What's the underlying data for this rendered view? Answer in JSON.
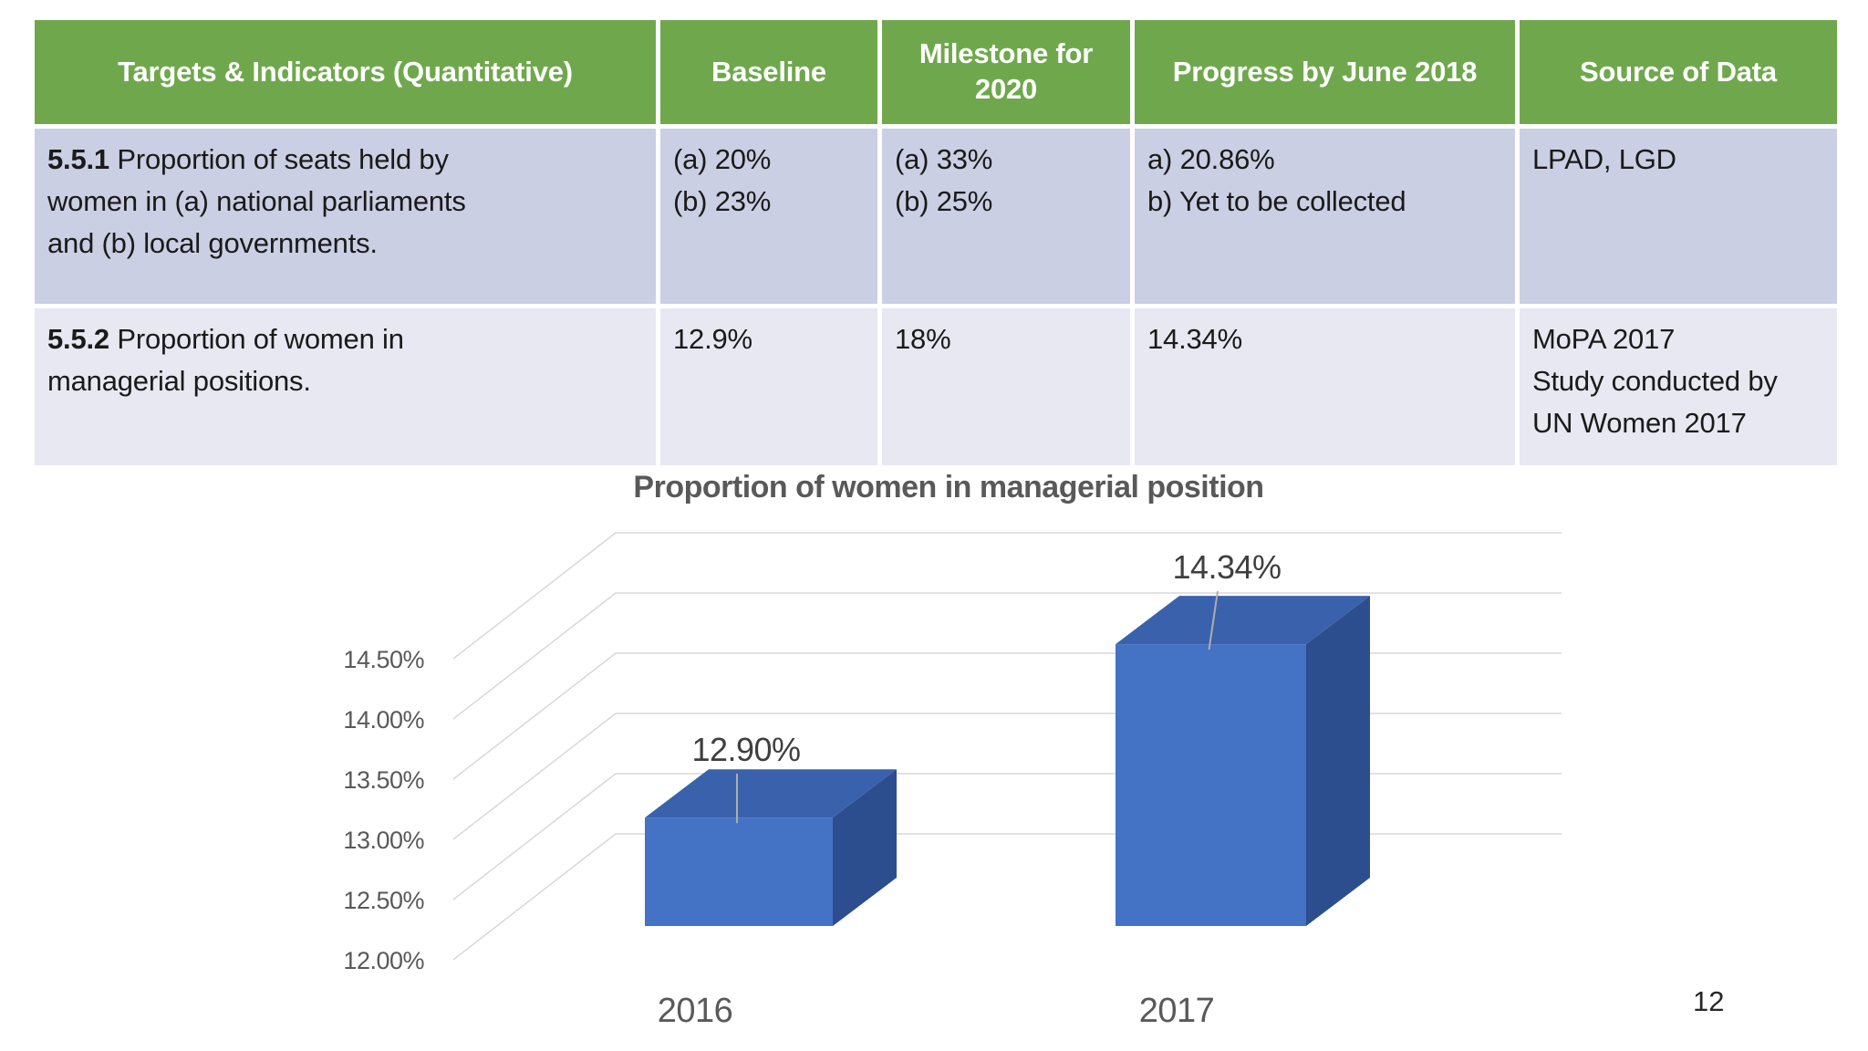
{
  "table": {
    "headers": [
      "Targets & Indicators (Quantitative)",
      "Baseline",
      "Milestone for 2020",
      "Progress by June 2018",
      "Source of Data"
    ],
    "rows": [
      {
        "id": "5.5.1",
        "indicator": " Proportion of seats held by\nwomen in (a) national parliaments\nand (b) local governments.",
        "baseline": "(a) 20%\n(b) 23%",
        "milestone": "(a) 33%\n(b) 25%",
        "progress": "a) 20.86%\nb) Yet to be collected",
        "source": "LPAD, LGD"
      },
      {
        "id": "5.5.2",
        "indicator": " Proportion of women in\nmanagerial positions.",
        "baseline": "12.9%",
        "milestone": "18%",
        "progress": "14.34%",
        "source": "MoPA 2017\nStudy conducted by\nUN Women 2017"
      }
    ]
  },
  "chart_data": {
    "type": "bar",
    "projection": "3d",
    "title": "Proportion of women in managerial position",
    "categories": [
      "2016",
      "2017"
    ],
    "values": [
      12.9,
      14.34
    ],
    "data_labels": [
      "12.90%",
      "14.34%"
    ],
    "y_ticks": [
      "14.50%",
      "14.00%",
      "13.50%",
      "13.00%",
      "12.50%",
      "12.00%"
    ],
    "ylim": [
      12.0,
      14.5
    ],
    "y_step": 0.5,
    "grid": true,
    "legend": "none",
    "colors": {
      "bar_front": "#4472C4",
      "bar_top": "#3A62AC",
      "bar_side": "#2C4D8E",
      "gridline": "#D8D8D8",
      "axis_text": "#595959",
      "title_text": "#595959",
      "data_label_text": "#3F3F3F",
      "leader_line": "#ADADAD"
    }
  },
  "theme": {
    "header_green": "#6FA84C",
    "row1_bg": "#CACFE3",
    "row2_bg": "#E7E8F2"
  },
  "page": {
    "number": "12"
  }
}
